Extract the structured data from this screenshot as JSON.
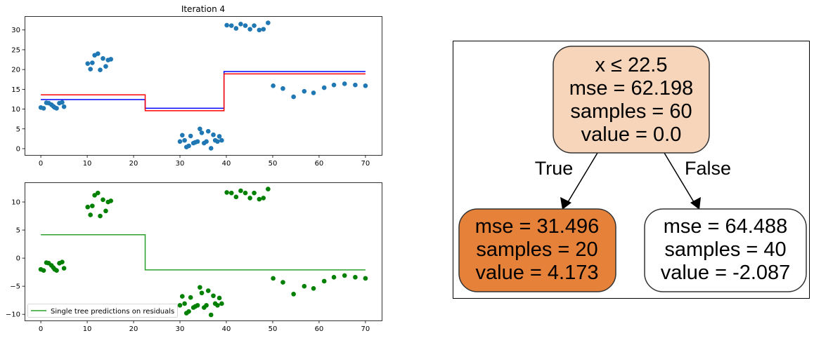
{
  "chart_data": [
    {
      "type": "scatter",
      "title": "Iteration 4",
      "xlim": [
        -3.5,
        73.5
      ],
      "ylim": [
        -1.6,
        33.5
      ],
      "xticks": [
        0,
        10,
        20,
        30,
        40,
        50,
        60,
        70
      ],
      "yticks": [
        0,
        5,
        10,
        15,
        20,
        25,
        30
      ],
      "grid": false,
      "points": {
        "color": "#1f77b4",
        "x": [
          0,
          0.6,
          1.2,
          1.7,
          2.3,
          2.7,
          3.0,
          3.4,
          4.0,
          4.6,
          5.0,
          10.1,
          10.7,
          11.1,
          11.6,
          12.3,
          12.8,
          13.4,
          14.0,
          14.5,
          15.1,
          30.0,
          30.5,
          31.0,
          31.4,
          31.9,
          32.3,
          32.9,
          33.3,
          33.8,
          34.3,
          34.7,
          35.2,
          35.7,
          36.1,
          36.7,
          37.2,
          37.6,
          38.1,
          38.5,
          39.0,
          40.1,
          41.1,
          42.1,
          43.1,
          44.1,
          45.1,
          46.0,
          47.1,
          48.0,
          49.0,
          50.1,
          52.2,
          54.5,
          56.8,
          58.8,
          61.1,
          63.2,
          65.5,
          67.8,
          70.0
        ],
        "y": [
          10.4,
          10.2,
          11.6,
          11.5,
          11.1,
          10.7,
          10.4,
          10.2,
          11.5,
          11.7,
          10.6,
          21.5,
          20.1,
          21.7,
          23.6,
          24.0,
          19.9,
          22.8,
          20.8,
          22.4,
          22.6,
          1.8,
          3.4,
          2.1,
          0.4,
          0.7,
          3.2,
          1.4,
          1.6,
          1.8,
          5.0,
          4.0,
          1.4,
          1.8,
          4.4,
          0.1,
          3.5,
          2.1,
          1.8,
          3.1,
          2.1,
          31.2,
          31.1,
          30.4,
          31.5,
          31.1,
          30.2,
          31.1,
          30.0,
          30.2,
          31.8,
          15.9,
          15.2,
          13.1,
          14.5,
          14.1,
          15.4,
          16.1,
          16.4,
          16.1,
          15.9
        ]
      },
      "lines": [
        {
          "color": "#0000ff",
          "x": [
            0,
            22.5,
            22.5,
            39.5,
            39.5,
            70
          ],
          "y": [
            12.4,
            12.4,
            10.2,
            10.2,
            19.5,
            19.5
          ]
        },
        {
          "color": "#ff0000",
          "x": [
            0,
            22.5,
            22.5,
            39.5,
            39.5,
            70
          ],
          "y": [
            13.6,
            13.6,
            9.6,
            9.6,
            18.9,
            18.9
          ]
        }
      ]
    },
    {
      "type": "scatter",
      "title": "",
      "xlim": [
        -3.5,
        73.5
      ],
      "ylim": [
        -11.1,
        13.5
      ],
      "xticks": [
        0,
        10,
        20,
        30,
        40,
        50,
        60,
        70
      ],
      "yticks": [
        -10,
        -5,
        0,
        5,
        10
      ],
      "grid": false,
      "legend_position": "lower-left",
      "points": {
        "color": "#008000",
        "x": [
          0,
          0.6,
          1.2,
          1.7,
          2.3,
          2.7,
          3.0,
          3.4,
          4.0,
          4.6,
          5.0,
          10.1,
          10.7,
          11.1,
          11.6,
          12.3,
          12.8,
          13.4,
          14.0,
          14.5,
          15.1,
          30.0,
          30.5,
          31.0,
          31.4,
          31.9,
          32.3,
          32.9,
          33.3,
          33.8,
          34.3,
          34.7,
          35.2,
          35.7,
          36.1,
          36.7,
          37.2,
          37.6,
          38.1,
          38.5,
          39.0,
          40.1,
          41.1,
          42.1,
          43.1,
          44.1,
          45.1,
          46.0,
          47.1,
          48.0,
          49.0,
          50.1,
          52.2,
          54.5,
          56.8,
          58.8,
          61.1,
          63.2,
          65.5,
          67.8,
          70.0
        ],
        "y": [
          -2.0,
          -2.2,
          -0.8,
          -0.9,
          -1.3,
          -1.7,
          -2.0,
          -2.2,
          -0.9,
          -0.7,
          -1.8,
          9.1,
          7.7,
          9.3,
          11.2,
          11.6,
          7.5,
          10.4,
          8.4,
          10.0,
          10.2,
          -8.4,
          -6.8,
          -8.1,
          -9.8,
          -9.5,
          -7.0,
          -8.8,
          -8.6,
          -8.4,
          -5.2,
          -6.2,
          -8.8,
          -8.4,
          -5.8,
          -10.1,
          -6.7,
          -8.1,
          -8.4,
          -7.1,
          -8.1,
          11.7,
          11.6,
          10.9,
          12.0,
          11.6,
          10.7,
          11.6,
          10.5,
          10.7,
          12.3,
          -3.6,
          -4.3,
          -6.4,
          -5.0,
          -5.4,
          -4.1,
          -3.4,
          -3.1,
          -3.4,
          -3.6
        ]
      },
      "lines": [
        {
          "name": "Single tree predictions on residuals",
          "color": "#2ca02c",
          "x": [
            0,
            22.5,
            22.5,
            70
          ],
          "y": [
            4.173,
            4.173,
            -2.087,
            -2.087
          ]
        }
      ]
    }
  ],
  "tree": {
    "root": {
      "lines": [
        "x ≤ 22.5",
        "mse = 62.198",
        "samples = 60",
        "value = 0.0"
      ],
      "fill": "#f6d5bb"
    },
    "left": {
      "lines": [
        "mse = 31.496",
        "samples = 20",
        "value = 4.173"
      ],
      "fill": "#e58139"
    },
    "right": {
      "lines": [
        "mse = 64.488",
        "samples = 40",
        "value = -2.087"
      ],
      "fill": "#ffffff"
    },
    "edge_true": "True",
    "edge_false": "False"
  }
}
